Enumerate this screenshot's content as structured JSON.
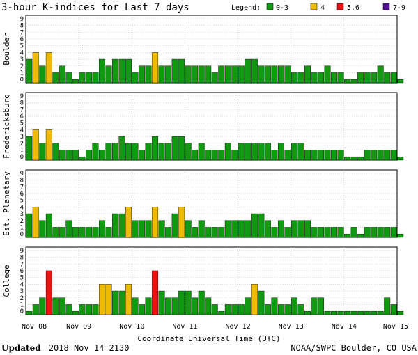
{
  "chart_data": {
    "type": "bar",
    "title": "3-hour K-indices for Last 7 days",
    "legend": {
      "label": "Legend:",
      "items": [
        {
          "name": "0-3",
          "color": "#119911"
        },
        {
          "name": "4",
          "color": "#eebb00"
        },
        {
          "name": "5,6",
          "color": "#ee1111"
        },
        {
          "name": "7-9",
          "color": "#551199"
        }
      ]
    },
    "xlabel": "Coordinate Universal Time (UTC)",
    "x_ticks": [
      "Nov 08",
      "Nov 09",
      "Nov 10",
      "Nov 11",
      "Nov 12",
      "Nov 13",
      "Nov 14",
      "Nov 15"
    ],
    "ylim": [
      0,
      9
    ],
    "y_ticks": [
      "0",
      "1",
      "2",
      "3",
      "4",
      "5",
      "6",
      "7",
      "8",
      "9"
    ],
    "bars_per_day": 8,
    "series": [
      {
        "name": "Boulder",
        "values": [
          3,
          4,
          2,
          4,
          1,
          2,
          1,
          0,
          1,
          1,
          1,
          3,
          2,
          3,
          3,
          3,
          1,
          2,
          2,
          4,
          2,
          2,
          3,
          3,
          2,
          2,
          2,
          2,
          1,
          2,
          2,
          2,
          2,
          3,
          3,
          2,
          2,
          2,
          2,
          2,
          1,
          1,
          2,
          1,
          1,
          2,
          1,
          1,
          0,
          0,
          1,
          1,
          1,
          2,
          1,
          1,
          0
        ]
      },
      {
        "name": "Fredericksburg",
        "values": [
          3,
          4,
          2,
          4,
          2,
          1,
          1,
          1,
          0,
          1,
          2,
          1,
          2,
          2,
          3,
          2,
          2,
          1,
          2,
          3,
          2,
          2,
          3,
          3,
          2,
          1,
          2,
          1,
          1,
          1,
          2,
          1,
          2,
          2,
          2,
          2,
          2,
          1,
          2,
          1,
          2,
          2,
          1,
          1,
          1,
          1,
          1,
          1,
          0,
          0,
          0,
          1,
          1,
          1,
          1,
          1,
          0
        ]
      },
      {
        "name": "Est. Planetary",
        "values": [
          3,
          4,
          2,
          3,
          1,
          1,
          2,
          1,
          1,
          1,
          1,
          2,
          1,
          3,
          3,
          4,
          2,
          2,
          2,
          4,
          2,
          1,
          3,
          4,
          2,
          1,
          2,
          1,
          1,
          1,
          2,
          2,
          2,
          2,
          3,
          3,
          2,
          1,
          2,
          1,
          2,
          2,
          2,
          1,
          1,
          1,
          1,
          1,
          0,
          1,
          0,
          1,
          1,
          1,
          1,
          1,
          0
        ]
      },
      {
        "name": "College",
        "values": [
          0,
          1,
          2,
          6,
          2,
          2,
          1,
          0,
          1,
          1,
          1,
          4,
          4,
          3,
          3,
          4,
          2,
          1,
          2,
          6,
          3,
          2,
          2,
          3,
          3,
          2,
          3,
          2,
          1,
          0,
          1,
          1,
          1,
          2,
          4,
          3,
          1,
          2,
          1,
          1,
          2,
          1,
          0,
          2,
          2,
          0,
          0,
          0,
          0,
          0,
          0,
          0,
          0,
          0,
          2,
          1,
          0
        ]
      }
    ]
  },
  "footer": {
    "updated_label": "Updated",
    "updated_value": "2018 Nov 14 2130",
    "source": "NOAA/SWPC Boulder, CO USA"
  }
}
